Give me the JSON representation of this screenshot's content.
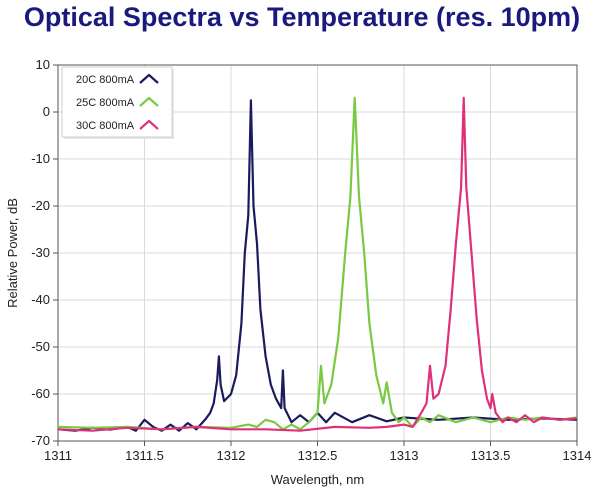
{
  "title": "Optical Spectra vs Temperature (res. 10pm)",
  "colors": {
    "title": "#1a1a7e",
    "grid": "#d9d9d9",
    "axis": "#555555"
  },
  "chart_data": {
    "type": "line",
    "xlabel": "Wavelength, nm",
    "ylabel": "Relative Power, dB",
    "xlim": [
      1311,
      1314
    ],
    "ylim": [
      -70,
      10
    ],
    "xticks": [
      1311,
      1311.5,
      1312,
      1312.5,
      1313,
      1313.5,
      1314
    ],
    "xtick_labels": [
      "1311",
      "1311.5",
      "1312",
      "1312.5",
      "1313",
      "1313.5",
      "1314"
    ],
    "yticks": [
      10,
      0,
      -10,
      -20,
      -30,
      -40,
      -50,
      -60,
      -70
    ],
    "ytick_labels": [
      "10",
      "0",
      "-10",
      "-20",
      "-30",
      "-40",
      "-50",
      "-60",
      "-70"
    ],
    "grid": true,
    "legend_position": "top-left",
    "series": [
      {
        "name": "20C 800mA",
        "color": "#1a1a5e",
        "points": [
          [
            1311.0,
            -67.5
          ],
          [
            1311.1,
            -67.8
          ],
          [
            1311.2,
            -67.2
          ],
          [
            1311.3,
            -67.6
          ],
          [
            1311.4,
            -67.0
          ],
          [
            1311.45,
            -67.8
          ],
          [
            1311.5,
            -65.5
          ],
          [
            1311.55,
            -67.0
          ],
          [
            1311.6,
            -67.8
          ],
          [
            1311.65,
            -66.5
          ],
          [
            1311.7,
            -67.8
          ],
          [
            1311.75,
            -66.2
          ],
          [
            1311.8,
            -67.5
          ],
          [
            1311.85,
            -65.5
          ],
          [
            1311.88,
            -64.0
          ],
          [
            1311.9,
            -62.0
          ],
          [
            1311.92,
            -57.0
          ],
          [
            1311.93,
            -52.0
          ],
          [
            1311.94,
            -58.0
          ],
          [
            1311.96,
            -61.5
          ],
          [
            1312.0,
            -60.0
          ],
          [
            1312.03,
            -56.0
          ],
          [
            1312.06,
            -45.0
          ],
          [
            1312.08,
            -30.0
          ],
          [
            1312.1,
            -22.0
          ],
          [
            1312.115,
            2.5
          ],
          [
            1312.13,
            -20.0
          ],
          [
            1312.15,
            -28.0
          ],
          [
            1312.17,
            -42.0
          ],
          [
            1312.2,
            -52.0
          ],
          [
            1312.23,
            -58.0
          ],
          [
            1312.26,
            -61.0
          ],
          [
            1312.29,
            -63.0
          ],
          [
            1312.3,
            -55.0
          ],
          [
            1312.31,
            -63.0
          ],
          [
            1312.35,
            -66.0
          ],
          [
            1312.4,
            -64.5
          ],
          [
            1312.45,
            -66.0
          ],
          [
            1312.5,
            -64.0
          ],
          [
            1312.55,
            -66.0
          ],
          [
            1312.6,
            -64.0
          ],
          [
            1312.7,
            -66.0
          ],
          [
            1312.8,
            -64.5
          ],
          [
            1312.9,
            -65.8
          ],
          [
            1313.0,
            -65.0
          ],
          [
            1313.2,
            -65.5
          ],
          [
            1313.4,
            -65.0
          ],
          [
            1313.6,
            -65.5
          ],
          [
            1313.8,
            -65.2
          ],
          [
            1314.0,
            -65.5
          ]
        ]
      },
      {
        "name": "25C 800mA",
        "color": "#7ac943",
        "points": [
          [
            1311.0,
            -67.0
          ],
          [
            1311.2,
            -67.2
          ],
          [
            1311.4,
            -67.0
          ],
          [
            1311.6,
            -67.5
          ],
          [
            1311.8,
            -67.0
          ],
          [
            1312.0,
            -67.2
          ],
          [
            1312.1,
            -66.5
          ],
          [
            1312.15,
            -67.0
          ],
          [
            1312.2,
            -65.5
          ],
          [
            1312.25,
            -66.0
          ],
          [
            1312.3,
            -67.5
          ],
          [
            1312.35,
            -66.5
          ],
          [
            1312.4,
            -67.5
          ],
          [
            1312.45,
            -66.0
          ],
          [
            1312.5,
            -64.0
          ],
          [
            1312.52,
            -54.0
          ],
          [
            1312.54,
            -62.0
          ],
          [
            1312.58,
            -58.0
          ],
          [
            1312.62,
            -48.0
          ],
          [
            1312.66,
            -30.0
          ],
          [
            1312.69,
            -18.0
          ],
          [
            1312.715,
            3.0
          ],
          [
            1312.74,
            -18.0
          ],
          [
            1312.77,
            -30.0
          ],
          [
            1312.8,
            -45.0
          ],
          [
            1312.84,
            -56.0
          ],
          [
            1312.88,
            -62.0
          ],
          [
            1312.9,
            -57.5
          ],
          [
            1312.93,
            -64.0
          ],
          [
            1312.97,
            -66.0
          ],
          [
            1313.0,
            -65.0
          ],
          [
            1313.05,
            -67.0
          ],
          [
            1313.1,
            -65.0
          ],
          [
            1313.15,
            -66.0
          ],
          [
            1313.2,
            -64.5
          ],
          [
            1313.3,
            -66.0
          ],
          [
            1313.4,
            -65.0
          ],
          [
            1313.5,
            -66.0
          ],
          [
            1313.6,
            -65.0
          ],
          [
            1313.7,
            -65.5
          ],
          [
            1313.8,
            -65.0
          ],
          [
            1313.9,
            -65.5
          ],
          [
            1314.0,
            -65.0
          ]
        ]
      },
      {
        "name": "30C 800mA",
        "color": "#e0307a",
        "points": [
          [
            1311.0,
            -67.5
          ],
          [
            1311.2,
            -67.8
          ],
          [
            1311.4,
            -67.2
          ],
          [
            1311.6,
            -67.5
          ],
          [
            1311.8,
            -67.0
          ],
          [
            1312.0,
            -67.5
          ],
          [
            1312.2,
            -67.5
          ],
          [
            1312.4,
            -67.8
          ],
          [
            1312.6,
            -67.0
          ],
          [
            1312.8,
            -67.2
          ],
          [
            1312.9,
            -67.0
          ],
          [
            1313.0,
            -66.5
          ],
          [
            1313.05,
            -67.0
          ],
          [
            1313.1,
            -64.0
          ],
          [
            1313.13,
            -62.0
          ],
          [
            1313.15,
            -54.0
          ],
          [
            1313.17,
            -61.0
          ],
          [
            1313.2,
            -60.0
          ],
          [
            1313.24,
            -54.0
          ],
          [
            1313.27,
            -42.0
          ],
          [
            1313.3,
            -28.0
          ],
          [
            1313.33,
            -16.0
          ],
          [
            1313.345,
            3.0
          ],
          [
            1313.36,
            -16.0
          ],
          [
            1313.39,
            -30.0
          ],
          [
            1313.42,
            -44.0
          ],
          [
            1313.45,
            -55.0
          ],
          [
            1313.48,
            -61.0
          ],
          [
            1313.5,
            -63.0
          ],
          [
            1313.51,
            -60.0
          ],
          [
            1313.53,
            -64.0
          ],
          [
            1313.57,
            -66.0
          ],
          [
            1313.6,
            -65.0
          ],
          [
            1313.65,
            -66.0
          ],
          [
            1313.7,
            -64.5
          ],
          [
            1313.75,
            -66.0
          ],
          [
            1313.8,
            -65.0
          ],
          [
            1313.9,
            -65.5
          ],
          [
            1314.0,
            -65.2
          ]
        ]
      }
    ]
  }
}
